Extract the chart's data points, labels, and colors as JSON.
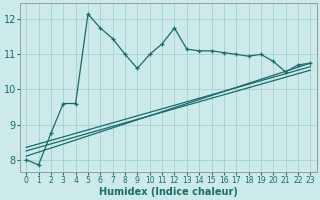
{
  "xlabel": "Humidex (Indice chaleur)",
  "xlim": [
    -0.5,
    23.5
  ],
  "ylim": [
    7.65,
    12.45
  ],
  "yticks": [
    8,
    9,
    10,
    11,
    12
  ],
  "xticks": [
    0,
    1,
    2,
    3,
    4,
    5,
    6,
    7,
    8,
    9,
    10,
    11,
    12,
    13,
    14,
    15,
    16,
    17,
    18,
    19,
    20,
    21,
    22,
    23
  ],
  "background_color": "#cceaea",
  "grid_color": "#aad4d4",
  "line_color": "#1a6b6b",
  "series_main_x": [
    0,
    1,
    2,
    3,
    4,
    5,
    6,
    7,
    8,
    9,
    10,
    11,
    12,
    13,
    14,
    15,
    16,
    17,
    18,
    19,
    20,
    21,
    22,
    23
  ],
  "series_main_y": [
    8.0,
    7.85,
    8.75,
    9.6,
    9.6,
    12.15,
    11.75,
    11.45,
    11.0,
    10.6,
    11.0,
    11.3,
    11.75,
    11.15,
    11.1,
    11.1,
    11.05,
    11.0,
    10.95,
    11.0,
    10.8,
    10.5,
    10.7,
    10.75
  ],
  "trend_lines": [
    {
      "x": [
        0,
        23
      ],
      "y": [
        8.1,
        10.75
      ]
    },
    {
      "x": [
        0,
        23
      ],
      "y": [
        8.25,
        10.55
      ]
    },
    {
      "x": [
        0,
        23
      ],
      "y": [
        8.35,
        10.65
      ]
    }
  ]
}
